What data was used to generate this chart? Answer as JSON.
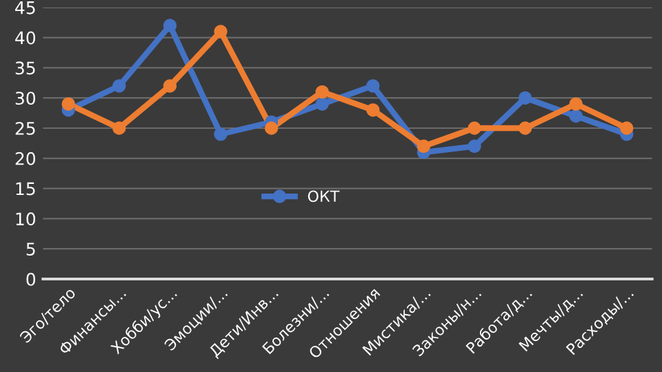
{
  "chart_data": {
    "type": "line",
    "categories": [
      "Эго/тело",
      "Финансы...",
      "Хобби/ус...",
      "Эмоции/...",
      "Дети/Инв...",
      "Болезни/...",
      "Отношения",
      "Мистика/...",
      "Законы/н...",
      "Работа/д...",
      "Мечты/д...",
      "Расходы/..."
    ],
    "series": [
      {
        "name": "ОКТ",
        "color": "#4472c4",
        "values": [
          28,
          32,
          42,
          24,
          26,
          29,
          32,
          21,
          22,
          30,
          27,
          24
        ]
      },
      {
        "color": "#ed7d31",
        "values": [
          29,
          25,
          32,
          41,
          25,
          31,
          28,
          22,
          25,
          25,
          29,
          25
        ]
      }
    ],
    "ylim": [
      0,
      45
    ],
    "yticks": [
      0,
      5,
      10,
      15,
      20,
      25,
      30,
      35,
      40,
      45
    ],
    "grid": "y",
    "legend": "center",
    "marker": "circle",
    "line_style": "solid"
  }
}
